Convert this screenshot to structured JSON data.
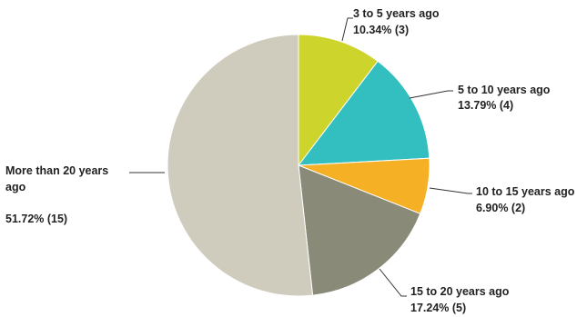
{
  "chart_data": {
    "type": "pie",
    "start_angle_deg": 0,
    "direction": "clockwise",
    "slices": [
      {
        "label": "3 to 5 years ago",
        "percent_text": "10.34% (3)",
        "value": 3,
        "percent": 10.34,
        "color": "#CDD42B"
      },
      {
        "label": "5 to 10 years ago",
        "percent_text": "13.79% (4)",
        "value": 4,
        "percent": 13.79,
        "color": "#33BFC0"
      },
      {
        "label": "10 to 15 years ago",
        "percent_text": "6.90% (2)",
        "value": 2,
        "percent": 6.9,
        "color": "#F6B026"
      },
      {
        "label": "15 to 20 years ago",
        "percent_text": "17.24% (5)",
        "value": 5,
        "percent": 17.24,
        "color": "#8A8A78"
      },
      {
        "label_lines": [
          "More than 20 years",
          "ago"
        ],
        "percent_text": "51.72% (15)",
        "value": 15,
        "percent": 51.72,
        "color": "#CFCCBE"
      }
    ]
  }
}
